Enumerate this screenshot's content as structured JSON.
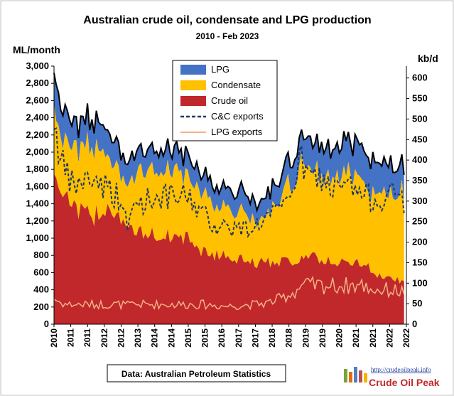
{
  "chart_data": {
    "type": "area",
    "title": "Australian crude oil, condensate and LPG production",
    "subtitle": "2010 - Feb 2023",
    "ylabel_left": "ML/month",
    "ylabel_right": "kb/d",
    "ylim_left": [
      0,
      3000
    ],
    "ylim_right": [
      0,
      628.9
    ],
    "yticks_left": [
      "0",
      "200",
      "400",
      "600",
      "800",
      "1,000",
      "1,200",
      "1,400",
      "1,600",
      "1,800",
      "2,000",
      "2,200",
      "2,400",
      "2,600",
      "2,800",
      "3,000"
    ],
    "yticks_right": [
      "0",
      "50",
      "100",
      "150",
      "200",
      "250",
      "300",
      "350",
      "400",
      "450",
      "500",
      "550",
      "600"
    ],
    "x_ticks": [
      "2010",
      "2011",
      "2011",
      "2012",
      "2012",
      "2013",
      "2014",
      "2014",
      "2015",
      "2015",
      "2016",
      "2017",
      "2017",
      "2018",
      "2018",
      "2019",
      "2019",
      "2020",
      "2021",
      "2021",
      "2022",
      "2022"
    ],
    "x_range": [
      2010.0,
      2023.17
    ],
    "stack_order": [
      "Crude oil",
      "Condensate",
      "LPG"
    ],
    "legend_position": "top-center",
    "legend": [
      {
        "name": "LPG",
        "color": "#4472C4",
        "kind": "area"
      },
      {
        "name": "Condensate",
        "color": "#FFC000",
        "kind": "area"
      },
      {
        "name": "Crude oil",
        "color": "#C0282C",
        "kind": "area"
      },
      {
        "name": "C&C exports",
        "color": "#1F3864",
        "kind": "dashed-line"
      },
      {
        "name": "LPG exports",
        "color": "#F4B183",
        "kind": "line"
      }
    ],
    "total_line_color": "#000000",
    "anchors": {
      "years": [
        2010.0,
        2010.25,
        2010.5,
        2010.75,
        2011.0,
        2011.5,
        2012.0,
        2012.5,
        2012.75,
        2013.0,
        2013.5,
        2014.0,
        2014.5,
        2015.0,
        2015.5,
        2016.0,
        2016.5,
        2017.0,
        2017.5,
        2018.0,
        2018.5,
        2019.0,
        2019.25,
        2019.5,
        2020.0,
        2020.5,
        2021.0,
        2021.5,
        2022.0,
        2022.5,
        2023.0,
        2023.17
      ],
      "crude_oil": [
        1750,
        1600,
        1500,
        1350,
        1300,
        1250,
        1400,
        1250,
        1100,
        1050,
        1050,
        1050,
        1000,
        1000,
        850,
        800,
        800,
        750,
        700,
        720,
        740,
        720,
        800,
        780,
        750,
        720,
        700,
        720,
        600,
        520,
        500,
        480
      ],
      "condensate": [
        800,
        620,
        650,
        700,
        750,
        800,
        650,
        550,
        450,
        650,
        750,
        750,
        750,
        750,
        700,
        600,
        550,
        550,
        500,
        600,
        750,
        1000,
        1150,
        1050,
        1000,
        1000,
        1050,
        950,
        900,
        1000,
        1050,
        1000
      ],
      "lpg": [
        400,
        350,
        350,
        300,
        300,
        300,
        300,
        280,
        250,
        250,
        250,
        250,
        250,
        230,
        230,
        230,
        230,
        230,
        230,
        230,
        250,
        300,
        300,
        330,
        350,
        350,
        380,
        380,
        370,
        340,
        330,
        320
      ],
      "cc_exports": [
        2400,
        1900,
        1700,
        1600,
        1650,
        1700,
        1600,
        1450,
        1100,
        1400,
        1450,
        1500,
        1450,
        1500,
        1300,
        1150,
        1150,
        1100,
        1150,
        1250,
        1300,
        1700,
        1900,
        1700,
        1700,
        1550,
        1600,
        1500,
        1450,
        1500,
        1500,
        1300
      ],
      "lpg_exports": [
        300,
        250,
        230,
        230,
        230,
        230,
        230,
        230,
        220,
        230,
        230,
        230,
        230,
        230,
        230,
        220,
        210,
        220,
        230,
        250,
        300,
        380,
        450,
        450,
        450,
        450,
        450,
        450,
        400,
        400,
        380,
        400
      ]
    },
    "source_note": "Data: Australian Petroleum Statistics",
    "logo_text": "http://crudeoilpeak.info",
    "logo_title": "Crude Oil Peak"
  }
}
